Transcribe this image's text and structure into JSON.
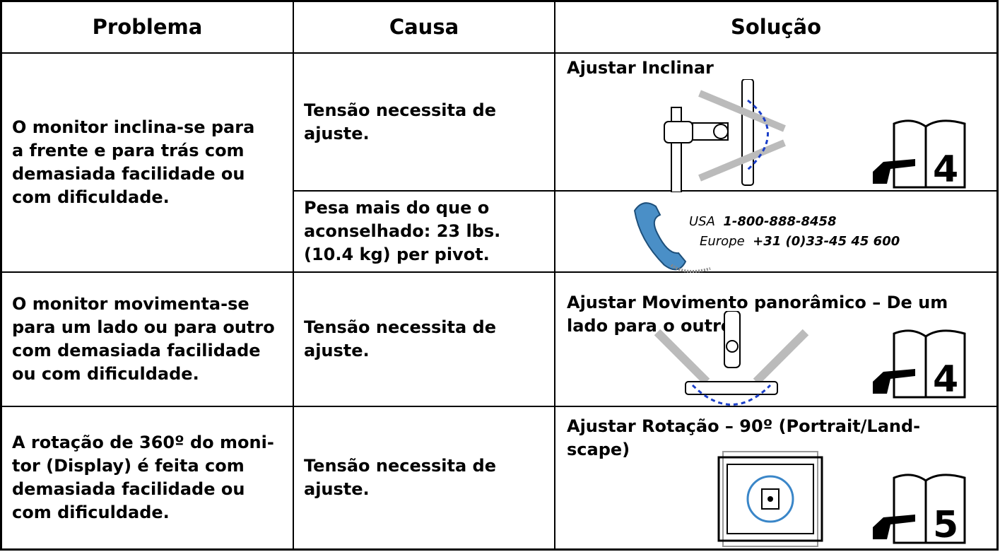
{
  "table": {
    "header": [
      "Problema",
      "Causa",
      "Solução"
    ],
    "rows": [
      {
        "problem": "O monitor inclina-se para a frente e para trás com demasiada facilidade ou com dificuldade.",
        "causes": [
          {
            "cause": "Tensão necessita de ajuste.",
            "solution": "Ajustar Inclinar",
            "page": "4"
          },
          {
            "cause": "Pesa mais do que o aconselhado: 23 lbs. (10.4 kg) per pivot.",
            "contact": [
              {
                "region": "USA",
                "phone": "1-800-888-8458"
              },
              {
                "region": "Europe",
                "phone": "+31 (0)33-45 45 600"
              }
            ]
          }
        ]
      },
      {
        "problem": "O monitor movimenta-se para um lado ou para outro com demasiada facilidade ou com dificuldade.",
        "causes": [
          {
            "cause": "Tensão necessita de ajuste.",
            "solution": "Ajustar Movimento panorâmico – De um lado para o outro",
            "page": "4"
          }
        ]
      },
      {
        "problem": "A rotação de 360º do moni-tor (Display) é feita com demasiada facilidade ou com dificuldade.",
        "causes": [
          {
            "cause": "Tensão necessita de ajuste.",
            "solution": "Ajustar Rotação – 90º (Portrait/Land-scape)",
            "page": "5"
          }
        ]
      }
    ]
  }
}
